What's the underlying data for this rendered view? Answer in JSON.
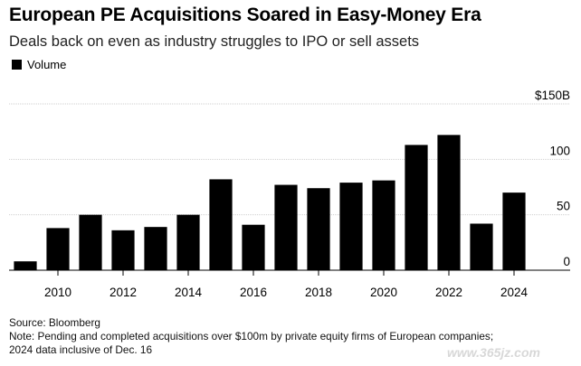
{
  "header": {
    "title": "European PE Acquisitions Soared in Easy-Money Era",
    "subtitle": "Deals back on even as industry struggles to IPO or sell assets"
  },
  "footer": {
    "source": "Source: Bloomberg",
    "note_line1": "Note: Pending and completed acquisitions over $100m by private equity firms of European companies;",
    "note_line2": "2024 data inclusive of Dec. 16"
  },
  "watermark": "www.365jz.com",
  "chart_data": {
    "type": "bar",
    "legend": [
      "Volume"
    ],
    "legend_position": "top-left",
    "x": [
      2009,
      2010,
      2011,
      2012,
      2013,
      2014,
      2015,
      2016,
      2017,
      2018,
      2019,
      2020,
      2021,
      2022,
      2023,
      2024
    ],
    "values": [
      8,
      38,
      50,
      36,
      39,
      50,
      82,
      41,
      77,
      74,
      79,
      81,
      113,
      122,
      42,
      70
    ],
    "x_tick_labels": [
      "2010",
      "2012",
      "2014",
      "2016",
      "2018",
      "2020",
      "2022",
      "2024"
    ],
    "y_tick_values": [
      0,
      50,
      100,
      150
    ],
    "y_tick_labels": [
      "0",
      "50",
      "100",
      "$150B"
    ],
    "ylim": [
      0,
      150
    ],
    "grid": true,
    "bar_color": "#000000",
    "grid_color": "#cfcfcf"
  }
}
